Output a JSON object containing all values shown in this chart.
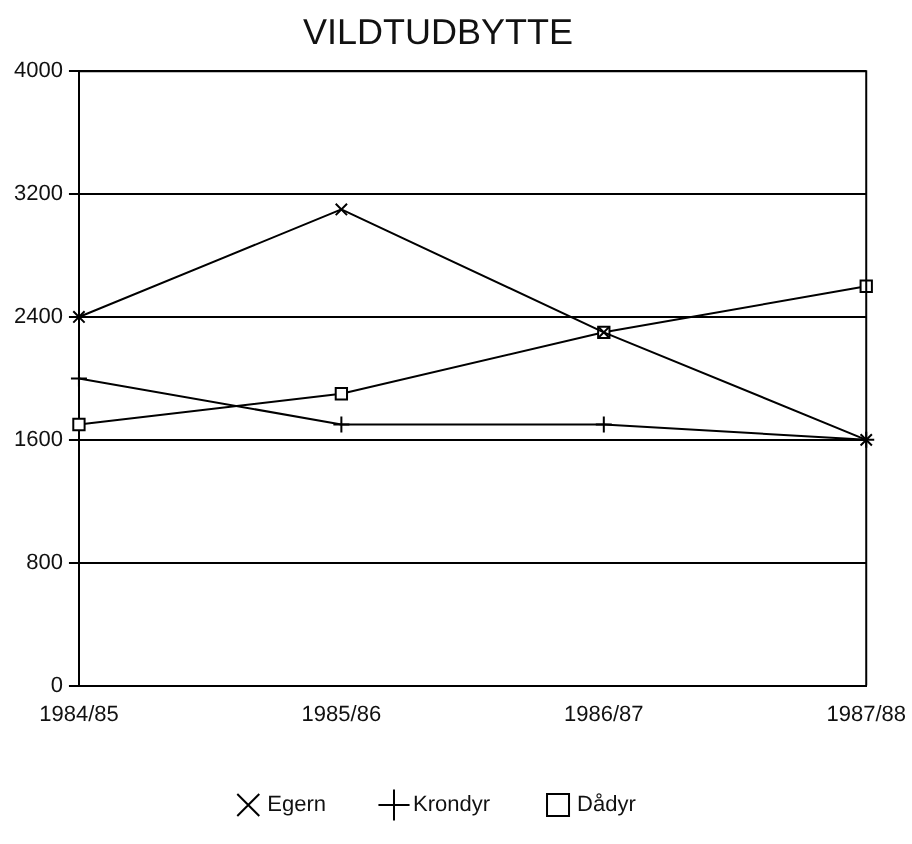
{
  "chart_data": {
    "type": "line",
    "title": "VILDTUDBYTTE",
    "categories": [
      "1984/85",
      "1985/86",
      "1986/87",
      "1987/88"
    ],
    "series": [
      {
        "name": "Egern",
        "color": "#000000",
        "marker": "cross",
        "values": [
          2400,
          3100,
          2300,
          1600
        ]
      },
      {
        "name": "Krondyr",
        "color": "#000000",
        "marker": "plus",
        "values": [
          2000,
          1700,
          1700,
          1600
        ]
      },
      {
        "name": "Dådyr",
        "color": "#000000",
        "marker": "square",
        "values": [
          1700,
          1900,
          2300,
          2600
        ]
      }
    ],
    "ylim": [
      0,
      4000
    ],
    "yticks": [
      0,
      800,
      1600,
      2400,
      3200,
      4000
    ],
    "grid": "y",
    "legend": "bottom"
  }
}
